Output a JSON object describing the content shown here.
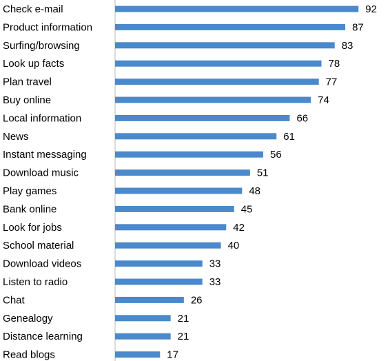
{
  "chart_data": {
    "type": "bar",
    "orientation": "horizontal",
    "categories": [
      "Check e-mail",
      "Product information",
      "Surfing/browsing",
      "Look up facts",
      "Plan travel",
      "Buy online",
      "Local information",
      "News",
      "Instant messaging",
      "Download music",
      "Play games",
      "Bank online",
      "Look for jobs",
      "School material",
      "Download videos",
      "Listen to radio",
      "Chat",
      "Genealogy",
      "Distance learning",
      "Read blogs"
    ],
    "values": [
      92,
      87,
      83,
      78,
      77,
      74,
      66,
      61,
      56,
      51,
      48,
      45,
      42,
      40,
      33,
      33,
      26,
      21,
      21,
      17
    ],
    "value_labels": [
      "92",
      "87",
      "83",
      "78",
      "77",
      "74",
      "66",
      "61",
      "56",
      "51",
      "48",
      "45",
      "42",
      "40",
      "33",
      "33",
      "26",
      "21",
      "21",
      "17"
    ],
    "bar_color": "#4a89cb",
    "grid": false,
    "legend": "none",
    "title": "",
    "xlabel": "",
    "ylabel": ""
  }
}
